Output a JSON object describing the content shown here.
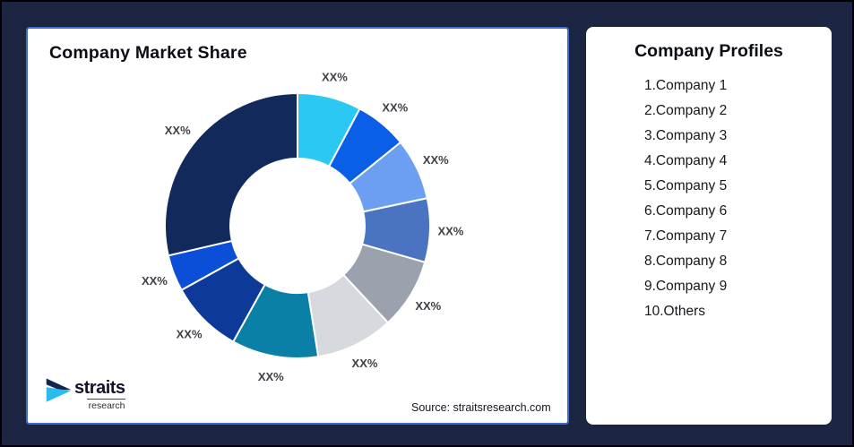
{
  "page": {
    "background_color": "#1C2541",
    "edge_border_color": "#000000"
  },
  "chart_card": {
    "title": "Company Market Share",
    "source_note": "Source: straitsresearch.com",
    "border_color": "#4169CE"
  },
  "logo": {
    "name": "straits",
    "subtitle": "research",
    "icon": "straits-chevron-arrow",
    "navy_color": "#16254E",
    "cyan_color": "#29BDEF"
  },
  "profiles_card": {
    "title": "Company Profiles",
    "items": [
      "1.Company 1",
      "2.Company 2",
      "3.Company 3",
      "4.Company 4",
      "5.Company 5",
      "6.Company 6",
      "7.Company 7",
      "8.Company 8",
      "9.Company 9",
      "10.Others"
    ]
  },
  "chart_data": {
    "type": "pie",
    "subtype": "donut",
    "title": "Company Market Share",
    "start_angle_deg": 0,
    "direction": "clockwise",
    "values_masked": true,
    "slice_label_text": "XX%",
    "slices": [
      {
        "label": "XX%",
        "angle_deg": 28,
        "color": "#2BC8F3"
      },
      {
        "label": "XX%",
        "angle_deg": 23,
        "color": "#0A5FE6"
      },
      {
        "label": "XX%",
        "angle_deg": 27,
        "color": "#6C9FF1"
      },
      {
        "label": "XX%",
        "angle_deg": 28,
        "color": "#4A74C2"
      },
      {
        "label": "XX%",
        "angle_deg": 31,
        "color": "#9BA1AD"
      },
      {
        "label": "XX%",
        "angle_deg": 34,
        "color": "#D6D9DE"
      },
      {
        "label": "XX%",
        "angle_deg": 38,
        "color": "#0A80A6"
      },
      {
        "label": "XX%",
        "angle_deg": 32,
        "color": "#0D3A99"
      },
      {
        "label": "XX%",
        "angle_deg": 16,
        "color": "#0B4FD9"
      },
      {
        "label": "XX%",
        "angle_deg": 103,
        "color": "#12295C"
      }
    ]
  }
}
